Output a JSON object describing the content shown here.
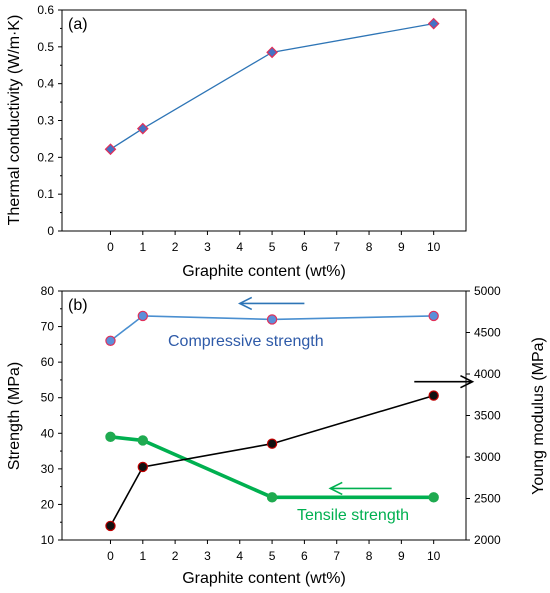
{
  "chart_data": [
    {
      "type": "line",
      "panel_label": "(a)",
      "xlabel": "Graphite content (wt%)",
      "ylabel": "Thermal conductivity (W/m·K)",
      "x": [
        0,
        1,
        5,
        10
      ],
      "xlim": [
        -1.5,
        11
      ],
      "xticks": [
        "0",
        "1",
        "2",
        "3",
        "4",
        "5",
        "6",
        "7",
        "8",
        "9",
        "10"
      ],
      "ylim": [
        0,
        0.6
      ],
      "yticks": [
        "0",
        "0.1",
        "0.2",
        "0.3",
        "0.4",
        "0.5",
        "0.6"
      ],
      "grid": false,
      "series": [
        {
          "values": [
            0.222,
            0.278,
            0.485,
            0.563
          ],
          "line_color": "#2e75b6",
          "marker": "diamond",
          "marker_fill": "#4472c4",
          "marker_edge": "#e0305a"
        }
      ]
    },
    {
      "type": "line",
      "panel_label": "(b)",
      "xlabel": "Graphite content (wt%)",
      "ylabel": "Strength (MPa)",
      "y2label": "Young modulus (MPa)",
      "x": [
        0,
        1,
        5,
        10
      ],
      "xlim": [
        -1.5,
        11
      ],
      "xticks": [
        "0",
        "1",
        "2",
        "3",
        "4",
        "5",
        "6",
        "7",
        "8",
        "9",
        "10"
      ],
      "ylim": [
        10,
        80
      ],
      "yticks": [
        "10",
        "20",
        "30",
        "40",
        "50",
        "60",
        "70",
        "80"
      ],
      "y2lim": [
        2000,
        5000
      ],
      "y2ticks": [
        "2000",
        "2500",
        "3000",
        "3500",
        "4000",
        "4500",
        "5000"
      ],
      "grid": false,
      "series": [
        {
          "name": "Compressive strength",
          "axis": "left",
          "values": [
            66,
            73,
            72,
            73
          ],
          "line_color": "#4a8fd0",
          "line_width": 1.6,
          "marker_fill": "#5b8fd9",
          "marker_edge": "#e0305a",
          "label_color": "#2e5aa8",
          "arrow_color": "#2e75b6",
          "arrow_x": [
            6,
            4
          ]
        },
        {
          "name": "Tensile strength",
          "axis": "left",
          "values": [
            39,
            38,
            22,
            22
          ],
          "line_color": "#00b050",
          "line_width": 3.6,
          "marker_fill": "#1faa50",
          "marker_edge": "#1faa50",
          "label_color": "#00b050",
          "arrow_color": "#00b050",
          "arrow_x": [
            8.7,
            6.8
          ]
        },
        {
          "axis": "right",
          "values": [
            2170,
            2880,
            3160,
            3740
          ],
          "line_color": "#000000",
          "line_width": 1.6,
          "marker_fill": "#111111",
          "marker_edge": "#c00000",
          "arrow_color": "#000000",
          "arrow_x": [
            9.4,
            11.2
          ]
        }
      ]
    }
  ]
}
